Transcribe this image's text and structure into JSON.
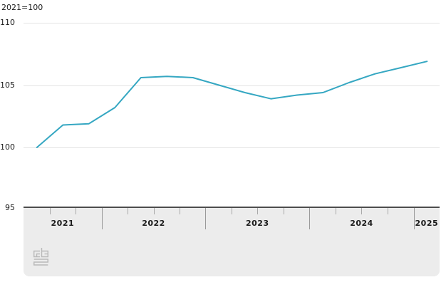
{
  "chart_data": {
    "type": "line",
    "title": "2021=100",
    "x": [
      "2021 Q2",
      "2021 Q3",
      "2021 Q4",
      "2022 Q1",
      "2022 Q2",
      "2022 Q3",
      "2022 Q4",
      "2023 Q1",
      "2023 Q2",
      "2023 Q3",
      "2023 Q4",
      "2024 Q1",
      "2024 Q2",
      "2024 Q3",
      "2024 Q4",
      "2025 Q1"
    ],
    "values": [
      100.0,
      101.8,
      101.9,
      103.2,
      105.6,
      105.7,
      105.6,
      105.0,
      104.4,
      103.9,
      104.2,
      104.4,
      105.2,
      105.9,
      106.4,
      106.9
    ],
    "xlabel": "",
    "ylabel": "",
    "ylim": [
      95,
      110
    ],
    "grid": "horizontal",
    "legend": "none",
    "series_color": "#35a7c2"
  },
  "y_axis": {
    "tick_labels": [
      "110",
      "105",
      "100",
      "95"
    ],
    "tick_values": [
      110,
      105,
      100,
      95
    ]
  },
  "x_axis": {
    "year_labels": [
      "2021",
      "2022",
      "2023",
      "2024",
      "2025"
    ]
  },
  "branding": {
    "logo_name": "cbs-logo"
  },
  "colors": {
    "line": "#35a7c2",
    "grid": "#e4e4e4",
    "axis_baseline": "#4d4d4d",
    "panel_background": "#ececec",
    "tick": "#999999",
    "text": "#1a1a1a",
    "logo": "#b9b9b9",
    "background": "#ffffff"
  }
}
